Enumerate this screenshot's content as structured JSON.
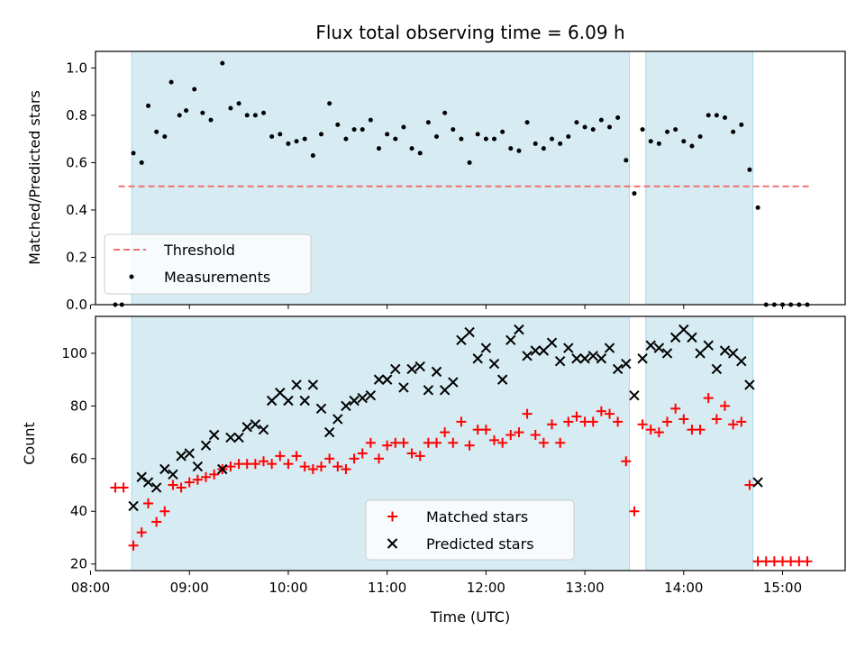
{
  "chart_data": [
    {
      "type": "scatter",
      "title": "Flux total observing time = 6.09 h",
      "xlabel": "",
      "ylabel": "Matched/Predicted stars",
      "xlim": [
        "08:03",
        "15:38"
      ],
      "ylim": [
        0,
        1.07
      ],
      "yticks": [
        "0.0",
        "0.2",
        "0.4",
        "0.6",
        "0.8",
        "1.0"
      ],
      "grid": false,
      "legend": "lower-left",
      "shaded_intervals": [
        [
          "08:25",
          "13:27"
        ],
        [
          "13:37",
          "14:42"
        ]
      ],
      "series": [
        {
          "name": "Threshold",
          "type": "line",
          "style": "dashed",
          "color": "#f07070",
          "x": [
            "08:17",
            "15:17"
          ],
          "y": [
            0.5,
            0.5
          ]
        },
        {
          "name": "Measurements",
          "type": "scatter",
          "color": "#000000",
          "points": [
            [
              "08:15",
              0.0
            ],
            [
              "08:19",
              0.0
            ],
            [
              "08:26",
              0.64
            ],
            [
              "08:31",
              0.6
            ],
            [
              "08:35",
              0.84
            ],
            [
              "08:40",
              0.73
            ],
            [
              "08:45",
              0.71
            ],
            [
              "08:49",
              0.94
            ],
            [
              "08:54",
              0.8
            ],
            [
              "08:58",
              0.82
            ],
            [
              "09:03",
              0.91
            ],
            [
              "09:08",
              0.81
            ],
            [
              "09:13",
              0.78
            ],
            [
              "09:20",
              1.02
            ],
            [
              "09:25",
              0.83
            ],
            [
              "09:30",
              0.85
            ],
            [
              "09:35",
              0.8
            ],
            [
              "09:40",
              0.8
            ],
            [
              "09:45",
              0.81
            ],
            [
              "09:50",
              0.71
            ],
            [
              "09:55",
              0.72
            ],
            [
              "10:00",
              0.68
            ],
            [
              "10:05",
              0.69
            ],
            [
              "10:10",
              0.7
            ],
            [
              "10:15",
              0.63
            ],
            [
              "10:20",
              0.72
            ],
            [
              "10:25",
              0.85
            ],
            [
              "10:30",
              0.76
            ],
            [
              "10:35",
              0.7
            ],
            [
              "10:40",
              0.74
            ],
            [
              "10:45",
              0.74
            ],
            [
              "10:50",
              0.78
            ],
            [
              "10:55",
              0.66
            ],
            [
              "11:00",
              0.72
            ],
            [
              "11:05",
              0.7
            ],
            [
              "11:10",
              0.75
            ],
            [
              "11:15",
              0.66
            ],
            [
              "11:20",
              0.64
            ],
            [
              "11:25",
              0.77
            ],
            [
              "11:30",
              0.71
            ],
            [
              "11:35",
              0.81
            ],
            [
              "11:40",
              0.74
            ],
            [
              "11:45",
              0.7
            ],
            [
              "11:50",
              0.6
            ],
            [
              "11:55",
              0.72
            ],
            [
              "12:00",
              0.7
            ],
            [
              "12:05",
              0.7
            ],
            [
              "12:10",
              0.73
            ],
            [
              "12:15",
              0.66
            ],
            [
              "12:20",
              0.65
            ],
            [
              "12:25",
              0.77
            ],
            [
              "12:30",
              0.68
            ],
            [
              "12:35",
              0.66
            ],
            [
              "12:40",
              0.7
            ],
            [
              "12:45",
              0.68
            ],
            [
              "12:50",
              0.71
            ],
            [
              "12:55",
              0.77
            ],
            [
              "13:00",
              0.75
            ],
            [
              "13:05",
              0.74
            ],
            [
              "13:10",
              0.78
            ],
            [
              "13:15",
              0.75
            ],
            [
              "13:20",
              0.79
            ],
            [
              "13:25",
              0.61
            ],
            [
              "13:30",
              0.47
            ],
            [
              "13:35",
              0.74
            ],
            [
              "13:40",
              0.69
            ],
            [
              "13:45",
              0.68
            ],
            [
              "13:50",
              0.73
            ],
            [
              "13:55",
              0.74
            ],
            [
              "14:00",
              0.69
            ],
            [
              "14:05",
              0.67
            ],
            [
              "14:10",
              0.71
            ],
            [
              "14:15",
              0.8
            ],
            [
              "14:20",
              0.8
            ],
            [
              "14:25",
              0.79
            ],
            [
              "14:30",
              0.73
            ],
            [
              "14:35",
              0.76
            ],
            [
              "14:40",
              0.57
            ],
            [
              "14:45",
              0.41
            ],
            [
              "14:50",
              0.0
            ],
            [
              "14:55",
              0.0
            ],
            [
              "15:00",
              0.0
            ],
            [
              "15:05",
              0.0
            ],
            [
              "15:10",
              0.0
            ],
            [
              "15:15",
              0.0
            ]
          ]
        }
      ]
    },
    {
      "type": "scatter",
      "title": "",
      "xlabel": "Time (UTC)",
      "ylabel": "Count",
      "xlim": [
        "08:03",
        "15:38"
      ],
      "ylim": [
        17.5,
        114
      ],
      "xticks": [
        "08:00",
        "09:00",
        "10:00",
        "11:00",
        "12:00",
        "13:00",
        "14:00",
        "15:00"
      ],
      "yticks": [
        "20",
        "40",
        "60",
        "80",
        "100"
      ],
      "grid": false,
      "legend": "lower-center",
      "shaded_intervals": [
        [
          "08:25",
          "13:27"
        ],
        [
          "13:37",
          "14:42"
        ]
      ],
      "series": [
        {
          "name": "Matched stars",
          "type": "scatter",
          "marker": "plus",
          "color": "#ff0000",
          "points": [
            [
              "08:15",
              49
            ],
            [
              "08:20",
              49
            ],
            [
              "08:26",
              27
            ],
            [
              "08:31",
              32
            ],
            [
              "08:35",
              43
            ],
            [
              "08:40",
              36
            ],
            [
              "08:45",
              40
            ],
            [
              "08:50",
              50
            ],
            [
              "08:55",
              49
            ],
            [
              "09:00",
              51
            ],
            [
              "09:05",
              52
            ],
            [
              "09:10",
              53
            ],
            [
              "09:15",
              54
            ],
            [
              "09:20",
              56
            ],
            [
              "09:25",
              57
            ],
            [
              "09:30",
              58
            ],
            [
              "09:35",
              58
            ],
            [
              "09:40",
              58
            ],
            [
              "09:45",
              59
            ],
            [
              "09:50",
              58
            ],
            [
              "09:55",
              61
            ],
            [
              "10:00",
              58
            ],
            [
              "10:05",
              61
            ],
            [
              "10:10",
              57
            ],
            [
              "10:15",
              56
            ],
            [
              "10:20",
              57
            ],
            [
              "10:25",
              60
            ],
            [
              "10:30",
              57
            ],
            [
              "10:35",
              56
            ],
            [
              "10:40",
              60
            ],
            [
              "10:45",
              62
            ],
            [
              "10:50",
              66
            ],
            [
              "10:55",
              60
            ],
            [
              "11:00",
              65
            ],
            [
              "11:05",
              66
            ],
            [
              "11:10",
              66
            ],
            [
              "11:15",
              62
            ],
            [
              "11:20",
              61
            ],
            [
              "11:25",
              66
            ],
            [
              "11:30",
              66
            ],
            [
              "11:35",
              70
            ],
            [
              "11:40",
              66
            ],
            [
              "11:45",
              74
            ],
            [
              "11:50",
              65
            ],
            [
              "11:55",
              71
            ],
            [
              "12:00",
              71
            ],
            [
              "12:05",
              67
            ],
            [
              "12:10",
              66
            ],
            [
              "12:15",
              69
            ],
            [
              "12:20",
              70
            ],
            [
              "12:25",
              77
            ],
            [
              "12:30",
              69
            ],
            [
              "12:35",
              66
            ],
            [
              "12:40",
              73
            ],
            [
              "12:45",
              66
            ],
            [
              "12:50",
              74
            ],
            [
              "12:55",
              76
            ],
            [
              "13:00",
              74
            ],
            [
              "13:05",
              74
            ],
            [
              "13:10",
              78
            ],
            [
              "13:15",
              77
            ],
            [
              "13:20",
              74
            ],
            [
              "13:25",
              59
            ],
            [
              "13:30",
              40
            ],
            [
              "13:35",
              73
            ],
            [
              "13:40",
              71
            ],
            [
              "13:45",
              70
            ],
            [
              "13:50",
              74
            ],
            [
              "13:55",
              79
            ],
            [
              "14:00",
              75
            ],
            [
              "14:05",
              71
            ],
            [
              "14:10",
              71
            ],
            [
              "14:15",
              83
            ],
            [
              "14:20",
              75
            ],
            [
              "14:25",
              80
            ],
            [
              "14:30",
              73
            ],
            [
              "14:35",
              74
            ],
            [
              "14:40",
              50
            ],
            [
              "14:45",
              21
            ],
            [
              "14:50",
              21
            ],
            [
              "14:55",
              21
            ],
            [
              "15:00",
              21
            ],
            [
              "15:05",
              21
            ],
            [
              "15:10",
              21
            ],
            [
              "15:15",
              21
            ]
          ]
        },
        {
          "name": "Predicted stars",
          "type": "scatter",
          "marker": "x",
          "color": "#000000",
          "points": [
            [
              "08:26",
              42
            ],
            [
              "08:31",
              53
            ],
            [
              "08:35",
              51
            ],
            [
              "08:40",
              49
            ],
            [
              "08:45",
              56
            ],
            [
              "08:50",
              54
            ],
            [
              "08:55",
              61
            ],
            [
              "09:00",
              62
            ],
            [
              "09:05",
              57
            ],
            [
              "09:10",
              65
            ],
            [
              "09:15",
              69
            ],
            [
              "09:20",
              56
            ],
            [
              "09:25",
              68
            ],
            [
              "09:30",
              68
            ],
            [
              "09:35",
              72
            ],
            [
              "09:40",
              73
            ],
            [
              "09:45",
              71
            ],
            [
              "09:50",
              82
            ],
            [
              "09:55",
              85
            ],
            [
              "10:00",
              82
            ],
            [
              "10:05",
              88
            ],
            [
              "10:10",
              82
            ],
            [
              "10:15",
              88
            ],
            [
              "10:20",
              79
            ],
            [
              "10:25",
              70
            ],
            [
              "10:30",
              75
            ],
            [
              "10:35",
              80
            ],
            [
              "10:40",
              82
            ],
            [
              "10:45",
              83
            ],
            [
              "10:50",
              84
            ],
            [
              "10:55",
              90
            ],
            [
              "11:00",
              90
            ],
            [
              "11:05",
              94
            ],
            [
              "11:10",
              87
            ],
            [
              "11:15",
              94
            ],
            [
              "11:20",
              95
            ],
            [
              "11:25",
              86
            ],
            [
              "11:30",
              93
            ],
            [
              "11:35",
              86
            ],
            [
              "11:40",
              89
            ],
            [
              "11:45",
              105
            ],
            [
              "11:50",
              108
            ],
            [
              "11:55",
              98
            ],
            [
              "12:00",
              102
            ],
            [
              "12:05",
              96
            ],
            [
              "12:10",
              90
            ],
            [
              "12:15",
              105
            ],
            [
              "12:20",
              109
            ],
            [
              "12:25",
              99
            ],
            [
              "12:30",
              101
            ],
            [
              "12:35",
              101
            ],
            [
              "12:40",
              104
            ],
            [
              "12:45",
              97
            ],
            [
              "12:50",
              102
            ],
            [
              "12:55",
              98
            ],
            [
              "13:00",
              98
            ],
            [
              "13:05",
              99
            ],
            [
              "13:10",
              98
            ],
            [
              "13:15",
              102
            ],
            [
              "13:20",
              94
            ],
            [
              "13:25",
              96
            ],
            [
              "13:30",
              84
            ],
            [
              "13:35",
              98
            ],
            [
              "13:40",
              103
            ],
            [
              "13:45",
              102
            ],
            [
              "13:50",
              100
            ],
            [
              "13:55",
              106
            ],
            [
              "14:00",
              109
            ],
            [
              "14:05",
              106
            ],
            [
              "14:10",
              100
            ],
            [
              "14:15",
              103
            ],
            [
              "14:20",
              94
            ],
            [
              "14:25",
              101
            ],
            [
              "14:30",
              100
            ],
            [
              "14:35",
              97
            ],
            [
              "14:40",
              88
            ],
            [
              "14:45",
              51
            ]
          ]
        }
      ]
    }
  ]
}
